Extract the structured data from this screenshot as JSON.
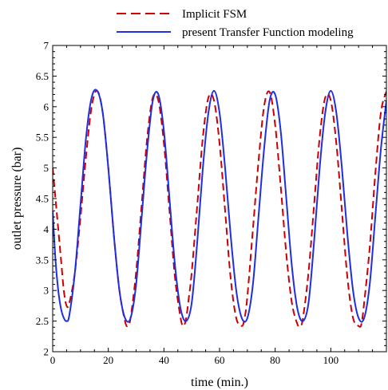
{
  "chart_data": {
    "type": "line",
    "title": "",
    "xlabel": "time (min.)",
    "ylabel": "outlet pressure (bar)",
    "xlim": [
      0,
      120
    ],
    "ylim": [
      2,
      7
    ],
    "xticks": [
      0,
      20,
      40,
      60,
      80,
      100
    ],
    "yticks": [
      2,
      2.5,
      3,
      3.5,
      4,
      4.5,
      5,
      5.5,
      6,
      6.5,
      7
    ],
    "ytick_labels": [
      "2",
      "2.5",
      "3",
      "3.5",
      "4",
      "4.5",
      "5",
      "5.5",
      "6",
      "6.5",
      "7"
    ],
    "grid": false,
    "legend_position": "top",
    "series": [
      {
        "name": "Implicit FSM",
        "color": "#cc0000",
        "style": "dashed",
        "x": [
          0,
          1,
          2,
          3,
          4,
          5,
          6,
          8,
          10,
          12,
          14,
          16,
          18,
          20,
          22,
          24,
          26,
          27,
          28,
          30,
          32,
          34,
          36,
          38,
          40,
          42,
          44,
          46,
          47,
          48,
          49,
          50,
          52,
          54,
          56,
          58,
          60,
          62,
          64,
          66,
          68,
          69,
          70,
          72,
          74,
          76,
          78,
          80,
          82,
          84,
          86,
          88,
          89,
          90,
          92,
          94,
          96,
          98,
          100,
          102,
          104,
          106,
          108,
          110,
          111,
          112,
          114,
          116,
          118,
          120
        ],
        "y": [
          5.0,
          4.5,
          4.0,
          3.5,
          3.0,
          2.75,
          2.8,
          3.3,
          4.2,
          5.2,
          6.0,
          6.26,
          5.9,
          5.0,
          3.9,
          3.0,
          2.5,
          2.42,
          2.55,
          3.3,
          4.4,
          5.5,
          6.15,
          6.1,
          5.4,
          4.3,
          3.2,
          2.55,
          2.42,
          2.55,
          2.9,
          3.3,
          4.4,
          5.5,
          6.15,
          6.1,
          5.4,
          4.3,
          3.2,
          2.55,
          2.42,
          2.55,
          2.9,
          4.0,
          5.1,
          6.0,
          6.24,
          5.7,
          4.7,
          3.6,
          2.8,
          2.45,
          2.42,
          2.55,
          3.3,
          4.4,
          5.5,
          6.15,
          6.1,
          5.4,
          4.3,
          3.2,
          2.55,
          2.42,
          2.45,
          2.8,
          3.7,
          4.9,
          5.9,
          6.25
        ]
      },
      {
        "name": "present Transfer Function modeling",
        "color": "#1f2fe0",
        "style": "solid",
        "x": [
          0,
          1,
          2,
          3,
          4,
          5,
          6,
          8,
          10,
          12,
          14,
          16,
          18,
          20,
          22,
          24,
          26,
          28,
          30,
          32,
          34,
          36,
          38,
          40,
          42,
          44,
          46,
          48,
          50,
          52,
          54,
          56,
          58,
          60,
          62,
          64,
          66,
          68,
          70,
          72,
          74,
          76,
          78,
          80,
          82,
          84,
          86,
          88,
          90,
          92,
          94,
          96,
          98,
          100,
          102,
          104,
          106,
          108,
          110,
          112,
          114,
          116,
          118,
          120
        ],
        "y": [
          4.3,
          3.5,
          3.0,
          2.7,
          2.55,
          2.5,
          2.6,
          3.3,
          4.4,
          5.5,
          6.15,
          6.26,
          5.9,
          5.0,
          3.9,
          3.0,
          2.55,
          2.55,
          3.1,
          4.2,
          5.3,
          6.1,
          6.2,
          5.6,
          4.5,
          3.4,
          2.7,
          2.5,
          2.8,
          3.8,
          5.0,
          5.9,
          6.26,
          5.9,
          5.0,
          3.9,
          3.0,
          2.55,
          2.55,
          3.1,
          4.2,
          5.3,
          6.1,
          6.2,
          5.6,
          4.5,
          3.4,
          2.7,
          2.5,
          2.8,
          3.8,
          5.0,
          5.9,
          6.26,
          5.9,
          5.0,
          3.9,
          3.0,
          2.55,
          2.55,
          3.1,
          4.2,
          5.3,
          6.1
        ]
      }
    ]
  }
}
